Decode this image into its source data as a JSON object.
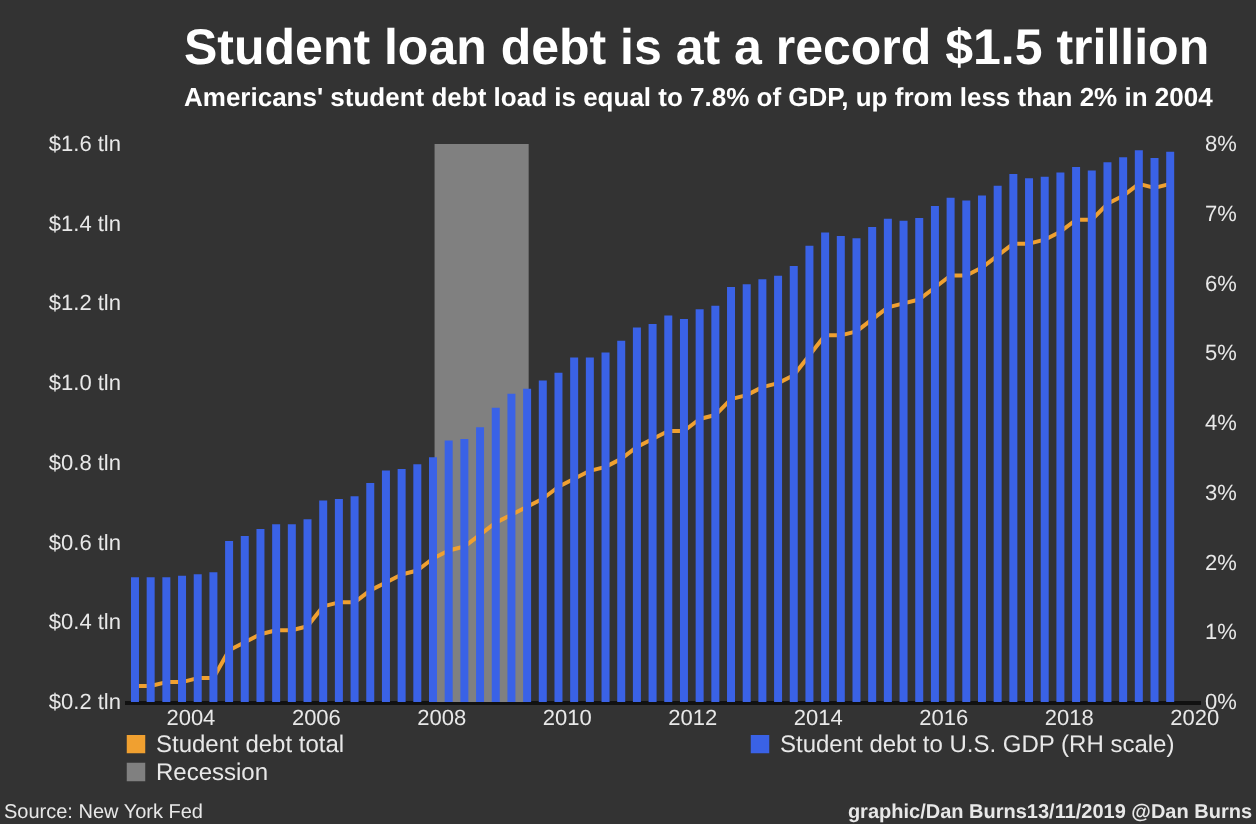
{
  "chart_data": {
    "type": "bar",
    "title": "Student loan debt is at a record $1.5 trillion",
    "subtitle": "Americans' student debt load is equal to 7.8% of GDP, up from less than 2% in 2004",
    "x": [
      2003.125,
      2003.375,
      2003.625,
      2003.875,
      2004.125,
      2004.375,
      2004.625,
      2004.875,
      2005.125,
      2005.375,
      2005.625,
      2005.875,
      2006.125,
      2006.375,
      2006.625,
      2006.875,
      2007.125,
      2007.375,
      2007.625,
      2007.875,
      2008.125,
      2008.375,
      2008.625,
      2008.875,
      2009.125,
      2009.375,
      2009.625,
      2009.875,
      2010.125,
      2010.375,
      2010.625,
      2010.875,
      2011.125,
      2011.375,
      2011.625,
      2011.875,
      2012.125,
      2012.375,
      2012.625,
      2012.875,
      2013.125,
      2013.375,
      2013.625,
      2013.875,
      2014.125,
      2014.375,
      2014.625,
      2014.875,
      2015.125,
      2015.375,
      2015.625,
      2015.875,
      2016.125,
      2016.375,
      2016.625,
      2016.875,
      2017.125,
      2017.375,
      2017.625,
      2017.875,
      2018.125,
      2018.375,
      2018.625,
      2018.875,
      2019.125,
      2019.375,
      2019.625
    ],
    "xlim": [
      2002.95,
      2020.1
    ],
    "xticks": [
      2004,
      2006,
      2008,
      2010,
      2012,
      2014,
      2016,
      2018,
      2020
    ],
    "ylim": [
      0.2,
      1.6
    ],
    "yticks": [
      {
        "value": 0.2,
        "label": "$0.2 tln"
      },
      {
        "value": 0.4,
        "label": "$0.4 tln"
      },
      {
        "value": 0.6,
        "label": "$0.6 tln"
      },
      {
        "value": 0.8,
        "label": "$0.8 tln"
      },
      {
        "value": 1.0,
        "label": "$1.0 tln"
      },
      {
        "value": 1.2,
        "label": "$1.2 tln"
      },
      {
        "value": 1.4,
        "label": "$1.4 tln"
      },
      {
        "value": 1.6,
        "label": "$1.6 tln"
      }
    ],
    "y2lim": [
      0,
      8
    ],
    "y2ticks": [
      {
        "value": 0,
        "label": "0%"
      },
      {
        "value": 1,
        "label": "1%"
      },
      {
        "value": 2,
        "label": "2%"
      },
      {
        "value": 3,
        "label": "3%"
      },
      {
        "value": 4,
        "label": "4%"
      },
      {
        "value": 5,
        "label": "5%"
      },
      {
        "value": 6,
        "label": "6%"
      },
      {
        "value": 7,
        "label": "7%"
      },
      {
        "value": 8,
        "label": "8%"
      }
    ],
    "series": [
      {
        "name": "Student debt total",
        "type": "line",
        "color": "#f0a030",
        "values": [
          0.24,
          0.24,
          0.25,
          0.25,
          0.26,
          0.26,
          0.33,
          0.35,
          0.37,
          0.38,
          0.38,
          0.39,
          0.44,
          0.45,
          0.45,
          0.48,
          0.5,
          0.52,
          0.53,
          0.56,
          0.58,
          0.59,
          0.62,
          0.65,
          0.67,
          0.69,
          0.71,
          0.74,
          0.76,
          0.78,
          0.79,
          0.81,
          0.84,
          0.86,
          0.88,
          0.88,
          0.91,
          0.92,
          0.96,
          0.97,
          0.99,
          1.0,
          1.02,
          1.07,
          1.12,
          1.12,
          1.13,
          1.16,
          1.19,
          1.2,
          1.21,
          1.24,
          1.27,
          1.27,
          1.29,
          1.32,
          1.35,
          1.35,
          1.36,
          1.38,
          1.41,
          1.41,
          1.45,
          1.47,
          1.5,
          1.49,
          1.5
        ]
      },
      {
        "name": "Student debt to U.S. GDP (RH scale)",
        "axis": "y2",
        "color": "#3a62e6",
        "values": [
          1.79,
          1.79,
          1.79,
          1.81,
          1.83,
          1.86,
          2.31,
          2.38,
          2.48,
          2.55,
          2.55,
          2.62,
          2.89,
          2.91,
          2.95,
          3.14,
          3.32,
          3.34,
          3.41,
          3.51,
          3.75,
          3.77,
          3.94,
          4.22,
          4.42,
          4.49,
          4.61,
          4.72,
          4.94,
          4.94,
          5.01,
          5.18,
          5.37,
          5.42,
          5.54,
          5.49,
          5.63,
          5.68,
          5.95,
          5.99,
          6.06,
          6.11,
          6.25,
          6.54,
          6.73,
          6.68,
          6.65,
          6.81,
          6.93,
          6.9,
          6.94,
          7.11,
          7.23,
          7.19,
          7.26,
          7.4,
          7.57,
          7.51,
          7.53,
          7.59,
          7.67,
          7.62,
          7.74,
          7.81,
          7.91,
          7.8,
          7.89
        ]
      }
    ],
    "bands": [
      {
        "axis": "x",
        "from": 2007.9,
        "to": 2009.4,
        "label": "Recession",
        "color": "#808080"
      }
    ],
    "legend": "bottom",
    "annotations": [
      "Source: New York Fed",
      "graphic/Dan Burns13/11/2019 @Dan Burns"
    ]
  }
}
